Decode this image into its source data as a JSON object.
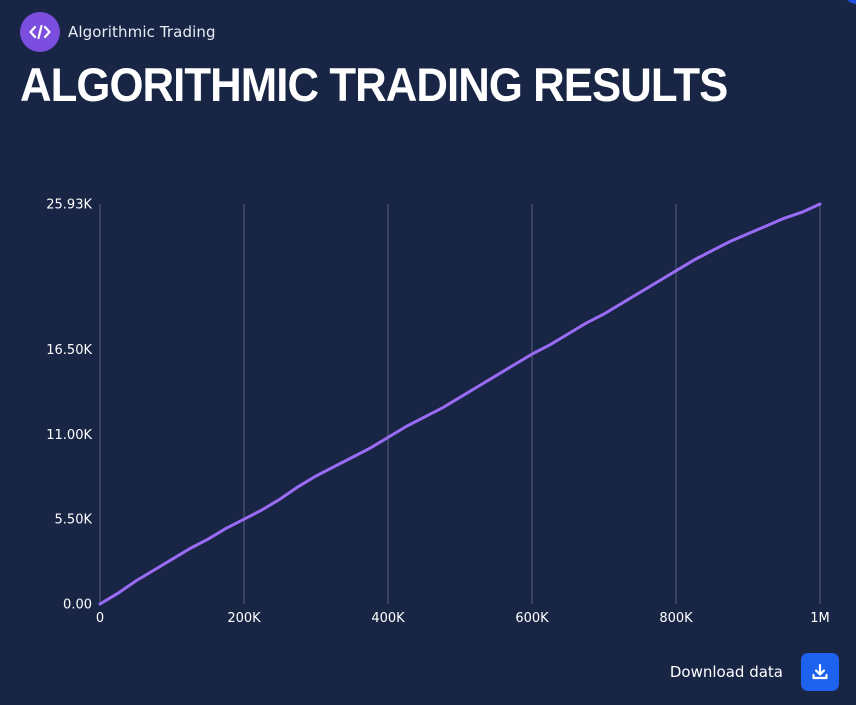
{
  "header": {
    "app_name": "Algorithmic Trading",
    "logo_icon": "code-icon",
    "title": "ALGORITHMIC TRADING RESULTS"
  },
  "footer": {
    "download_label": "Download data",
    "download_icon": "download-icon"
  },
  "colors": {
    "background": "#182544",
    "line": "#9a6cf5",
    "grid": "#4a5673",
    "logo": "#7c4ee0",
    "button": "#1e62f0"
  },
  "chart_data": {
    "type": "line",
    "title": "ALGORITHMIC TRADING RESULTS",
    "xlabel": "",
    "ylabel": "",
    "xlim": [
      0,
      1000000
    ],
    "ylim": [
      0,
      25930
    ],
    "x_ticks": [
      0,
      200000,
      400000,
      600000,
      800000,
      1000000
    ],
    "x_tick_labels": [
      "0",
      "200K",
      "400K",
      "600K",
      "800K",
      "1M"
    ],
    "y_ticks": [
      0,
      5500,
      11000,
      16500,
      25930
    ],
    "y_tick_labels": [
      "0.00",
      "5.50K",
      "11.00K",
      "16.50K",
      "25.93K"
    ],
    "grid": "vertical",
    "series": [
      {
        "x": [
          0,
          25000,
          50000,
          75000,
          100000,
          125000,
          150000,
          175000,
          200000,
          225000,
          250000,
          275000,
          300000,
          325000,
          350000,
          375000,
          400000,
          425000,
          450000,
          475000,
          500000,
          525000,
          550000,
          575000,
          600000,
          625000,
          650000,
          675000,
          700000,
          725000,
          750000,
          775000,
          800000,
          825000,
          850000,
          875000,
          900000,
          925000,
          950000,
          975000,
          1000000
        ],
        "y": [
          0,
          700,
          1500,
          2200,
          2900,
          3600,
          4200,
          4900,
          5500,
          6100,
          6800,
          7600,
          8300,
          8900,
          9500,
          10100,
          10800,
          11500,
          12100,
          12700,
          13400,
          14100,
          14800,
          15500,
          16200,
          16800,
          17500,
          18200,
          18800,
          19500,
          20200,
          20900,
          21600,
          22300,
          22900,
          23500,
          24000,
          24500,
          25000,
          25400,
          25930
        ]
      }
    ]
  }
}
